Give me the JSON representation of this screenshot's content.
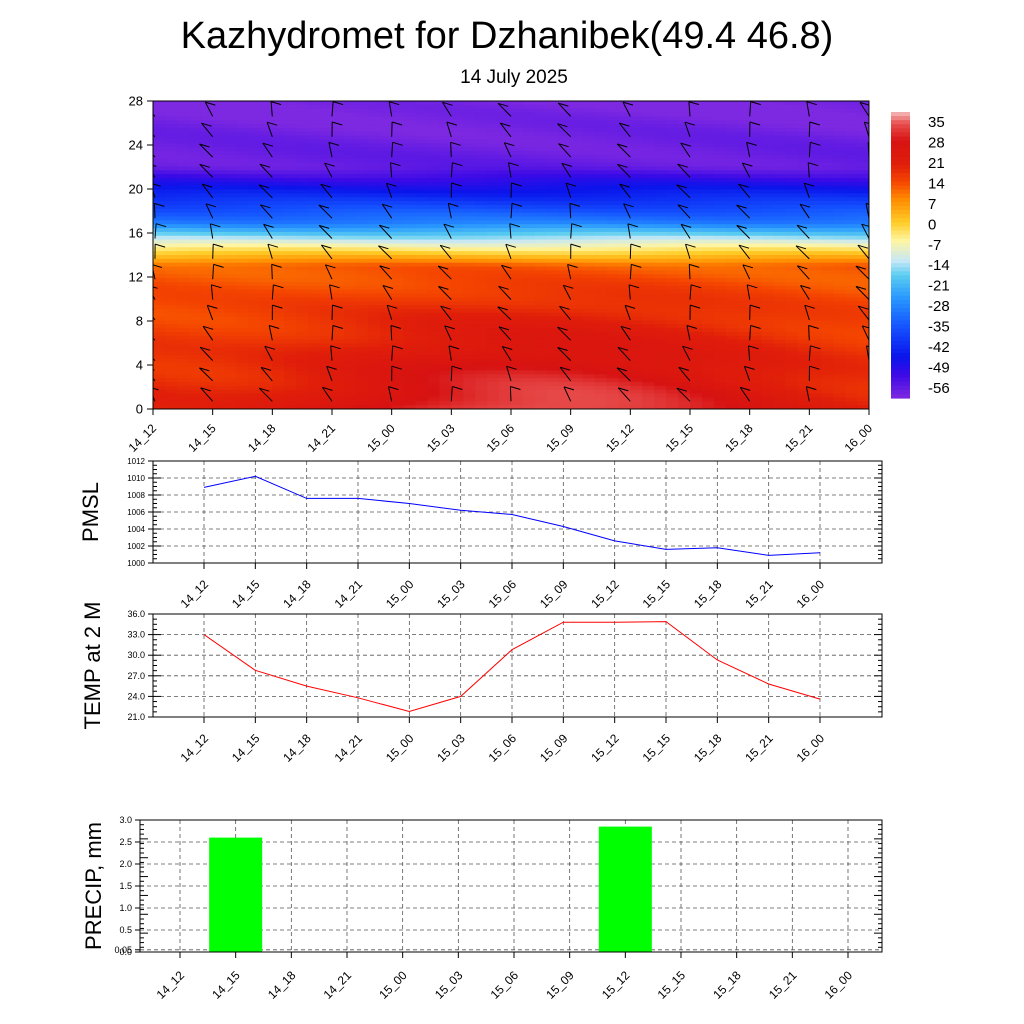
{
  "title": "Kazhydromet for Dzhanibek(49.4 46.8)",
  "subtitle": "14 July 2025",
  "colors": {
    "pmsl_line": "#0000ff",
    "temp_line": "#ff0000",
    "precip_bar": "#00ff00",
    "wind_barb": "#000000"
  },
  "chart_data": [
    {
      "type": "heatmap",
      "name": "vertical-cross-section",
      "x": [
        "14_12",
        "14_15",
        "14_18",
        "14_21",
        "15_00",
        "15_03",
        "15_06",
        "15_09",
        "15_12",
        "15_15",
        "15_18",
        "15_21",
        "16_00"
      ],
      "y_ticks": [
        0,
        4,
        8,
        12,
        16,
        20,
        24,
        28
      ],
      "ylim": [
        0,
        28
      ],
      "colorbar_labels": [
        "35",
        "28",
        "21",
        "14",
        "7",
        "0",
        "-7",
        "-14",
        "-21",
        "-28",
        "-35",
        "-42",
        "-49",
        "-56"
      ],
      "zlim": [
        -60,
        38
      ],
      "grid": false
    },
    {
      "type": "line",
      "name": "pmsl",
      "ylabel": "PMSL",
      "x": [
        "14_12",
        "14_15",
        "14_18",
        "14_21",
        "15_00",
        "15_03",
        "15_06",
        "15_09",
        "15_12",
        "15_15",
        "15_18",
        "15_21",
        "16_00"
      ],
      "y_ticks": [
        "1000",
        "1002",
        "1004",
        "1006",
        "1008",
        "1010",
        "1012"
      ],
      "ylim": [
        1000,
        1012
      ],
      "values": [
        1008.9,
        1010.2,
        1007.6,
        1007.6,
        1007.0,
        1006.2,
        1005.7,
        1004.3,
        1002.6,
        1001.6,
        1001.8,
        1000.9,
        1001.2
      ],
      "grid": true
    },
    {
      "type": "line",
      "name": "temp2m",
      "ylabel": "TEMP at 2 M",
      "x": [
        "14_12",
        "14_15",
        "14_18",
        "14_21",
        "15_00",
        "15_03",
        "15_06",
        "15_09",
        "15_12",
        "15_15",
        "15_18",
        "15_21",
        "16_00"
      ],
      "y_ticks": [
        "21.0",
        "24.0",
        "27.0",
        "30.0",
        "33.0",
        "36.0"
      ],
      "ylim": [
        21,
        36
      ],
      "values": [
        33.0,
        27.8,
        25.5,
        23.8,
        21.8,
        24.0,
        30.8,
        34.8,
        34.8,
        34.9,
        29.3,
        25.8,
        23.6
      ],
      "grid": true
    },
    {
      "type": "bar",
      "name": "precip",
      "ylabel": "PRECIP, mm",
      "x": [
        "14_12",
        "14_15",
        "14_18",
        "14_21",
        "15_00",
        "15_03",
        "15_06",
        "15_09",
        "15_12",
        "15_15",
        "15_18",
        "15_21",
        "16_00"
      ],
      "y_ticks": [
        "0.0",
        "0.05",
        "0.5",
        "1.0",
        "1.5",
        "2.0",
        "2.5",
        "3.0"
      ],
      "ylim": [
        0,
        3
      ],
      "values": [
        0,
        2.6,
        0,
        0,
        0,
        0,
        0,
        0,
        2.85,
        0,
        0,
        0,
        0
      ],
      "grid": true
    }
  ]
}
